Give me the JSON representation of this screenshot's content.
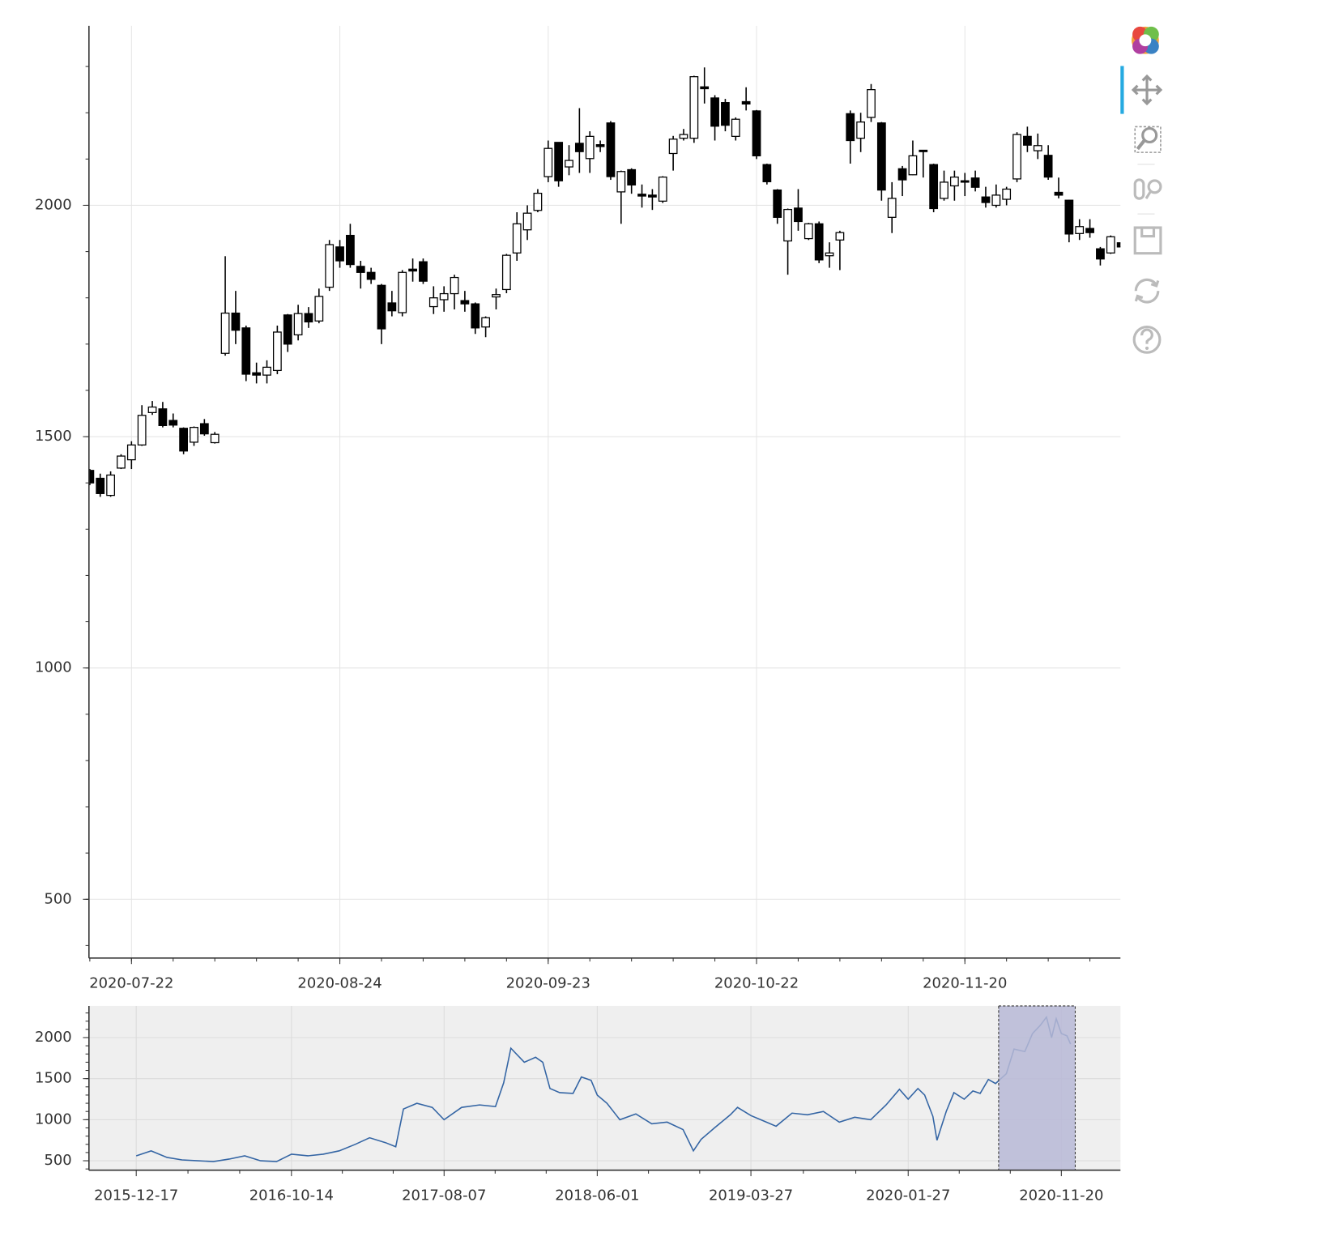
{
  "chart_data": [
    {
      "type": "candlestick",
      "categories": [
        null,
        null,
        null,
        null,
        "2020-07-22",
        null,
        null,
        null,
        null,
        null,
        null,
        null,
        null,
        null,
        null,
        null,
        null,
        null,
        null,
        null,
        null,
        null,
        null,
        null,
        "2020-08-24",
        null,
        null,
        null,
        null,
        null,
        null,
        null,
        null,
        null,
        null,
        null,
        null,
        null,
        null,
        null,
        null,
        null,
        null,
        null,
        "2020-09-23",
        null,
        null,
        null,
        null,
        null,
        null,
        null,
        null,
        null,
        null,
        null,
        null,
        null,
        null,
        null,
        null,
        null,
        null,
        null,
        "2020-10-22",
        null,
        null,
        null,
        null,
        null,
        null,
        null,
        null,
        null,
        null,
        null,
        null,
        null,
        null,
        null,
        null,
        null,
        null,
        null,
        "2020-11-20",
        null,
        null,
        null,
        null,
        null,
        null,
        null,
        null,
        null,
        null,
        null,
        null,
        null,
        null,
        null
      ],
      "open": [
        1427,
        1410,
        1373,
        1432,
        1450,
        1482,
        1552,
        1560,
        1535,
        1518,
        1488,
        1528,
        1487,
        1680,
        1767,
        1735,
        1638,
        1633,
        1643,
        1763,
        1720,
        1766,
        1750,
        1823,
        1910,
        1935,
        1868,
        1855,
        1827,
        1789,
        1768,
        1862,
        1878,
        1781,
        1796,
        1809,
        1794,
        1787,
        1737,
        1802,
        1818,
        1897,
        1947,
        1989,
        2062,
        2136,
        2083,
        2134,
        2101,
        2131,
        2178,
        2029,
        2077,
        2024,
        2022,
        2009,
        2112,
        2145,
        2145,
        2256,
        2232,
        2222,
        2149,
        2224,
        2204,
        2088,
        2033,
        1923,
        1994,
        1928,
        1960,
        1891,
        1925,
        2198,
        2145,
        2190,
        2178,
        1974,
        2079,
        2066,
        2119,
        2088,
        2015,
        2042,
        2053,
        2059,
        2018,
        2000,
        2013,
        2057,
        2149,
        2118,
        2108,
        2028,
        2011,
        1939,
        1950,
        1906,
        1897,
        1919
      ],
      "high": [
        1430,
        1420,
        1425,
        1462,
        1490,
        1568,
        1577,
        1575,
        1550,
        1520,
        1522,
        1538,
        1510,
        1890,
        1815,
        1740,
        1660,
        1665,
        1740,
        1765,
        1785,
        1780,
        1820,
        1925,
        1925,
        1960,
        1880,
        1865,
        1830,
        1815,
        1860,
        1885,
        1885,
        1825,
        1825,
        1850,
        1815,
        1790,
        1760,
        1820,
        1895,
        1985,
        2000,
        2035,
        2140,
        2136,
        2130,
        2210,
        2160,
        2140,
        2182,
        2075,
        2080,
        2045,
        2035,
        2063,
        2150,
        2165,
        2280,
        2298,
        2238,
        2230,
        2190,
        2255,
        2206,
        2090,
        2035,
        1993,
        2035,
        1962,
        1965,
        1920,
        1945,
        2205,
        2200,
        2262,
        2180,
        2050,
        2085,
        2140,
        2119,
        2090,
        2075,
        2075,
        2070,
        2075,
        2040,
        2045,
        2040,
        2158,
        2170,
        2155,
        2130,
        2060,
        2012,
        1970,
        1970,
        1910,
        1935,
        1945
      ],
      "low": [
        1395,
        1370,
        1370,
        1430,
        1430,
        1480,
        1547,
        1520,
        1520,
        1462,
        1480,
        1502,
        1485,
        1675,
        1700,
        1620,
        1615,
        1615,
        1635,
        1683,
        1708,
        1735,
        1745,
        1815,
        1865,
        1865,
        1820,
        1830,
        1700,
        1760,
        1760,
        1835,
        1830,
        1765,
        1770,
        1775,
        1770,
        1722,
        1715,
        1775,
        1810,
        1880,
        1925,
        1985,
        2050,
        2040,
        2065,
        2070,
        2070,
        2115,
        2055,
        1960,
        2025,
        1995,
        1990,
        2005,
        2075,
        2140,
        2135,
        2220,
        2140,
        2160,
        2140,
        2205,
        2100,
        2045,
        1960,
        1850,
        1945,
        1925,
        1875,
        1865,
        1860,
        2090,
        2115,
        2180,
        2010,
        1940,
        2020,
        2065,
        2060,
        1985,
        2010,
        2010,
        2020,
        2030,
        1995,
        1995,
        2000,
        2050,
        2115,
        2100,
        2055,
        2015,
        1920,
        1925,
        1930,
        1870,
        1895,
        1905
      ],
      "close": [
        1400,
        1377,
        1417,
        1458,
        1482,
        1546,
        1564,
        1524,
        1525,
        1469,
        1520,
        1506,
        1505,
        1767,
        1730,
        1635,
        1633,
        1650,
        1726,
        1700,
        1766,
        1748,
        1803,
        1915,
        1880,
        1872,
        1855,
        1840,
        1733,
        1772,
        1855,
        1858,
        1836,
        1800,
        1809,
        1844,
        1787,
        1735,
        1757,
        1807,
        1892,
        1960,
        1983,
        2026,
        2123,
        2053,
        2097,
        2116,
        2149,
        2127,
        2062,
        2073,
        2044,
        2020,
        2018,
        2061,
        2143,
        2153,
        2278,
        2252,
        2171,
        2173,
        2186,
        2219,
        2107,
        2051,
        1974,
        1991,
        1965,
        1960,
        1882,
        1897,
        1941,
        2140,
        2180,
        2250,
        2033,
        2015,
        2055,
        2107,
        2116,
        1993,
        2050,
        2061,
        2050,
        2039,
        2006,
        2022,
        2035,
        2153,
        2130,
        2129,
        2061,
        2022,
        1938,
        1954,
        1941,
        1884,
        1932,
        1910
      ],
      "increasing_color": "#ffffff",
      "decreasing_color": "#000000",
      "ylim": [
        373,
        2388
      ],
      "yticks": [
        500,
        1000,
        1500,
        2000
      ],
      "grid": true
    },
    {
      "type": "line",
      "x": [
        "2015-12-17",
        "2016-01-15",
        "2016-02-15",
        "2016-03-15",
        "2016-04-15",
        "2016-05-15",
        "2016-06-15",
        "2016-07-15",
        "2016-08-15",
        "2016-09-15",
        "2016-10-14",
        "2016-11-15",
        "2016-12-15",
        "2017-01-15",
        "2017-02-15",
        "2017-03-15",
        "2017-04-15",
        "2017-05-05",
        "2017-05-20",
        "2017-06-15",
        "2017-07-15",
        "2017-08-07",
        "2017-09-10",
        "2017-10-15",
        "2017-11-15",
        "2017-12-01",
        "2017-12-15",
        "2018-01-10",
        "2018-02-01",
        "2018-02-15",
        "2018-03-01",
        "2018-03-20",
        "2018-04-15",
        "2018-05-01",
        "2018-05-20",
        "2018-06-01",
        "2018-06-20",
        "2018-07-15",
        "2018-08-15",
        "2018-09-15",
        "2018-10-15",
        "2018-11-15",
        "2018-12-05",
        "2018-12-20",
        "2019-01-15",
        "2019-02-15",
        "2019-03-01",
        "2019-03-27",
        "2019-04-15",
        "2019-05-15",
        "2019-06-15",
        "2019-07-15",
        "2019-08-15",
        "2019-09-15",
        "2019-10-15",
        "2019-11-15",
        "2019-12-15",
        "2020-01-10",
        "2020-01-27",
        "2020-02-15",
        "2020-02-28",
        "2020-03-15",
        "2020-03-23",
        "2020-04-10",
        "2020-04-25",
        "2020-05-15",
        "2020-06-01",
        "2020-06-15",
        "2020-07-01",
        "2020-07-15",
        "2020-07-22",
        "2020-08-05",
        "2020-08-20",
        "2020-09-10",
        "2020-09-25",
        "2020-10-10",
        "2020-10-22",
        "2020-11-01",
        "2020-11-10",
        "2020-11-20",
        "2020-12-01",
        "2020-12-08"
      ],
      "values": [
        560,
        620,
        540,
        510,
        500,
        490,
        520,
        560,
        500,
        490,
        580,
        560,
        580,
        620,
        700,
        780,
        720,
        670,
        1130,
        1200,
        1150,
        1000,
        1150,
        1180,
        1160,
        1450,
        1870,
        1700,
        1760,
        1700,
        1380,
        1330,
        1320,
        1520,
        1480,
        1300,
        1200,
        1000,
        1070,
        950,
        970,
        880,
        620,
        760,
        900,
        1060,
        1150,
        1050,
        1000,
        920,
        1080,
        1060,
        1100,
        970,
        1030,
        1000,
        1180,
        1370,
        1250,
        1380,
        1300,
        1040,
        750,
        1100,
        1330,
        1250,
        1350,
        1320,
        1490,
        1440,
        1480,
        1560,
        1860,
        1830,
        2050,
        2150,
        2250,
        2000,
        2230,
        2050,
        2020,
        1920
      ],
      "color": "#3465a4",
      "background": "#efefef",
      "selection": [
        "2020-07-21",
        "2020-12-17"
      ],
      "selection_color": "#b7b9d6",
      "xlim": [
        "2015-09-16",
        "2021-03-15"
      ],
      "xticks": [
        "2015-12-17",
        "2016-10-14",
        "2017-08-07",
        "2018-06-01",
        "2019-03-27",
        "2020-01-27",
        "2020-11-20"
      ],
      "ylim": [
        385,
        2385
      ],
      "yticks": [
        500,
        1000,
        1500,
        2000
      ],
      "grid": true
    }
  ]
}
